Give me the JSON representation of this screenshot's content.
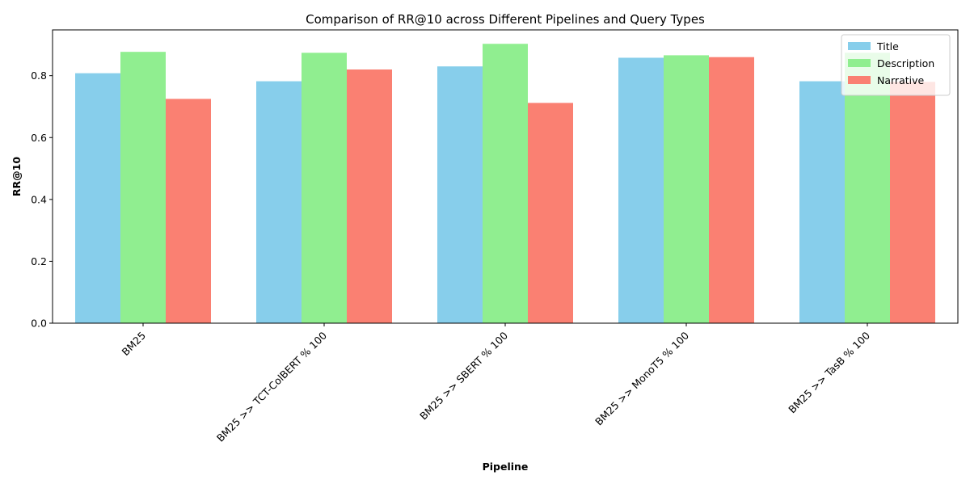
{
  "chart_data": {
    "type": "bar",
    "title": "Comparison of RR@10 across Different Pipelines and Query Types",
    "xlabel": "Pipeline",
    "ylabel": "RR@10",
    "categories": [
      "BM25",
      "BM25 >> TCT-ColBERT % 100",
      "BM25 >> SBERT % 100",
      "BM25 >> MonoT5 % 100",
      "BM25 >> TasB % 100"
    ],
    "series": [
      {
        "name": "Title",
        "color": "#87ceeb",
        "values": [
          0.808,
          0.782,
          0.83,
          0.858,
          0.782
        ]
      },
      {
        "name": "Description",
        "color": "#90ee90",
        "values": [
          0.877,
          0.874,
          0.903,
          0.866,
          0.874
        ]
      },
      {
        "name": "Narrative",
        "color": "#fa8072",
        "values": [
          0.725,
          0.82,
          0.712,
          0.86,
          0.78
        ]
      }
    ],
    "yticks": [
      "0.0",
      "0.2",
      "0.4",
      "0.6",
      "0.8"
    ],
    "ylim": [
      0,
      0.948
    ],
    "legend_position": "top-right",
    "grid": false
  }
}
